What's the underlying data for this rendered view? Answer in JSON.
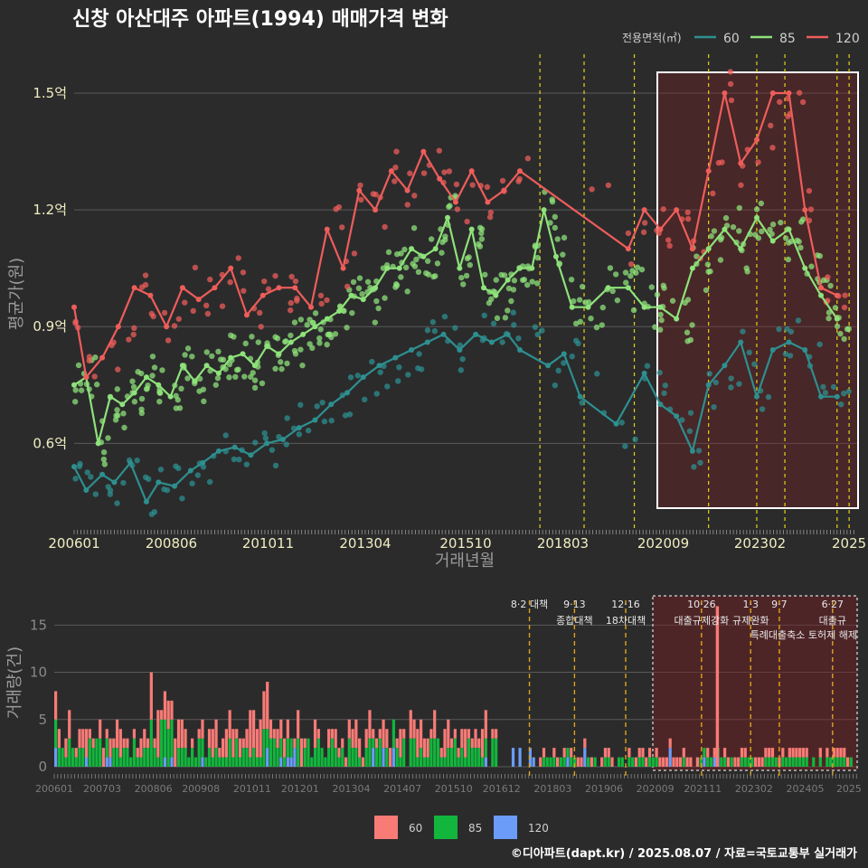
{
  "title": "신창 아산대주 아파트(1994) 매매가격 변화",
  "credit": "©디아파트(dapt.kr) / 2025.08.07 / 자료=국토교통부 실거래가",
  "colors": {
    "s60": "#f36a64",
    "s85": "#8ee27a",
    "s60line": "#2e8f8f",
    "s120": "#ee5d5a",
    "bar60": "#f87b76",
    "bar85": "#12b63c",
    "bar120": "#6b9cf7"
  },
  "chart_data": [
    {
      "type": "line",
      "ylabel": "평균가(원)",
      "xlabel": "거래년월",
      "y_ticks": [
        "0.6억",
        "0.9억",
        "1.2억",
        "1.5억"
      ],
      "y_tick_values": [
        0.6,
        0.9,
        1.2,
        1.5
      ],
      "ylim": [
        0.38,
        1.6
      ],
      "x_ticks": [
        "200601",
        "200806",
        "201011",
        "201304",
        "201510",
        "201803",
        "202009",
        "202302",
        "2025"
      ],
      "legend": {
        "title": "전용면적(㎡)",
        "placement": "top-right",
        "entries": [
          "60",
          "85",
          "120"
        ]
      },
      "series": [
        {
          "name": "60",
          "values": [
            [
              2006.0,
              0.54
            ],
            [
              2006.3,
              0.48
            ],
            [
              2006.7,
              0.52
            ],
            [
              2007.0,
              0.5
            ],
            [
              2007.4,
              0.55
            ],
            [
              2007.8,
              0.45
            ],
            [
              2008.1,
              0.5
            ],
            [
              2008.5,
              0.49
            ],
            [
              2008.9,
              0.53
            ],
            [
              2009.2,
              0.55
            ],
            [
              2009.6,
              0.58
            ],
            [
              2010.0,
              0.59
            ],
            [
              2010.4,
              0.57
            ],
            [
              2010.8,
              0.6
            ],
            [
              2011.2,
              0.61
            ],
            [
              2011.6,
              0.64
            ],
            [
              2012.0,
              0.66
            ],
            [
              2012.4,
              0.7
            ],
            [
              2012.8,
              0.73
            ],
            [
              2013.2,
              0.77
            ],
            [
              2013.6,
              0.8
            ],
            [
              2014.0,
              0.82
            ],
            [
              2014.4,
              0.84
            ],
            [
              2014.8,
              0.86
            ],
            [
              2015.2,
              0.88
            ],
            [
              2015.6,
              0.84
            ],
            [
              2016.0,
              0.88
            ],
            [
              2016.4,
              0.86
            ],
            [
              2016.8,
              0.88
            ],
            [
              2017.1,
              0.84
            ],
            [
              2017.8,
              0.8
            ],
            [
              2018.2,
              0.83
            ],
            [
              2018.6,
              0.72
            ],
            [
              2019.5,
              0.65
            ],
            [
              2020.2,
              0.78
            ],
            [
              2020.6,
              0.7
            ],
            [
              2021.0,
              0.67
            ],
            [
              2021.4,
              0.58
            ],
            [
              2021.8,
              0.75
            ],
            [
              2022.2,
              0.8
            ],
            [
              2022.6,
              0.86
            ],
            [
              2023.0,
              0.72
            ],
            [
              2023.4,
              0.84
            ],
            [
              2023.8,
              0.86
            ],
            [
              2024.2,
              0.84
            ],
            [
              2024.6,
              0.72
            ],
            [
              2025.0,
              0.72
            ]
          ]
        },
        {
          "name": "85",
          "values": [
            [
              2006.0,
              0.75
            ],
            [
              2006.3,
              0.77
            ],
            [
              2006.6,
              0.6
            ],
            [
              2006.9,
              0.72
            ],
            [
              2007.2,
              0.7
            ],
            [
              2007.5,
              0.73
            ],
            [
              2007.8,
              0.77
            ],
            [
              2008.1,
              0.75
            ],
            [
              2008.4,
              0.72
            ],
            [
              2008.7,
              0.8
            ],
            [
              2009.0,
              0.76
            ],
            [
              2009.3,
              0.8
            ],
            [
              2009.6,
              0.78
            ],
            [
              2009.9,
              0.82
            ],
            [
              2010.2,
              0.83
            ],
            [
              2010.5,
              0.8
            ],
            [
              2010.8,
              0.85
            ],
            [
              2011.1,
              0.83
            ],
            [
              2011.4,
              0.86
            ],
            [
              2011.7,
              0.88
            ],
            [
              2012.0,
              0.9
            ],
            [
              2012.3,
              0.92
            ],
            [
              2012.6,
              0.94
            ],
            [
              2012.9,
              0.98
            ],
            [
              2013.2,
              0.97
            ],
            [
              2013.5,
              1.0
            ],
            [
              2013.8,
              1.05
            ],
            [
              2014.1,
              1.05
            ],
            [
              2014.4,
              1.1
            ],
            [
              2014.7,
              1.08
            ],
            [
              2015.0,
              1.1
            ],
            [
              2015.3,
              1.18
            ],
            [
              2015.6,
              1.05
            ],
            [
              2015.9,
              1.15
            ],
            [
              2016.2,
              1.0
            ],
            [
              2016.5,
              0.98
            ],
            [
              2016.8,
              1.02
            ],
            [
              2017.1,
              1.05
            ],
            [
              2017.4,
              1.05
            ],
            [
              2017.7,
              1.2
            ],
            [
              2018.0,
              1.08
            ],
            [
              2018.4,
              0.95
            ],
            [
              2018.8,
              0.95
            ],
            [
              2019.3,
              1.0
            ],
            [
              2019.8,
              1.0
            ],
            [
              2020.2,
              0.95
            ],
            [
              2020.6,
              0.95
            ],
            [
              2021.0,
              0.92
            ],
            [
              2021.4,
              1.05
            ],
            [
              2021.8,
              1.1
            ],
            [
              2022.2,
              1.15
            ],
            [
              2022.6,
              1.1
            ],
            [
              2023.0,
              1.18
            ],
            [
              2023.4,
              1.12
            ],
            [
              2023.8,
              1.15
            ],
            [
              2024.2,
              1.05
            ],
            [
              2024.6,
              0.98
            ],
            [
              2025.0,
              0.92
            ]
          ]
        },
        {
          "name": "120",
          "values": [
            [
              2006.0,
              0.95
            ],
            [
              2006.3,
              0.77
            ],
            [
              2006.7,
              0.82
            ],
            [
              2007.1,
              0.9
            ],
            [
              2007.5,
              1.0
            ],
            [
              2007.9,
              0.98
            ],
            [
              2008.3,
              0.9
            ],
            [
              2008.7,
              1.0
            ],
            [
              2009.1,
              0.97
            ],
            [
              2009.5,
              1.0
            ],
            [
              2009.9,
              1.05
            ],
            [
              2010.3,
              0.93
            ],
            [
              2010.7,
              0.98
            ],
            [
              2011.1,
              1.0
            ],
            [
              2011.5,
              1.0
            ],
            [
              2011.9,
              0.95
            ],
            [
              2012.3,
              1.15
            ],
            [
              2012.7,
              1.05
            ],
            [
              2013.1,
              1.25
            ],
            [
              2013.5,
              1.2
            ],
            [
              2013.9,
              1.3
            ],
            [
              2014.3,
              1.25
            ],
            [
              2014.7,
              1.35
            ],
            [
              2015.1,
              1.28
            ],
            [
              2015.5,
              1.22
            ],
            [
              2015.9,
              1.3
            ],
            [
              2016.3,
              1.22
            ],
            [
              2016.7,
              1.25
            ],
            [
              2017.1,
              1.3
            ],
            [
              2019.8,
              1.1
            ],
            [
              2020.2,
              1.2
            ],
            [
              2020.6,
              1.15
            ],
            [
              2021.0,
              1.2
            ],
            [
              2021.4,
              1.1
            ],
            [
              2021.8,
              1.3
            ],
            [
              2022.2,
              1.5
            ],
            [
              2022.6,
              1.32
            ],
            [
              2023.0,
              1.38
            ],
            [
              2023.4,
              1.5
            ],
            [
              2023.8,
              1.5
            ],
            [
              2024.2,
              1.2
            ],
            [
              2024.6,
              1.0
            ],
            [
              2025.0,
              0.98
            ]
          ]
        }
      ]
    },
    {
      "type": "bar",
      "ylabel": "거래량(건)",
      "y_ticks": [
        "0",
        "5",
        "10",
        "15"
      ],
      "y_tick_values": [
        0,
        5,
        10,
        15
      ],
      "x_ticks": [
        "200601",
        "200703",
        "200806",
        "200908",
        "201011",
        "201201",
        "201304",
        "201407",
        "201510",
        "201612",
        "201803",
        "201906",
        "202009",
        "202111",
        "202302",
        "202405",
        "2025"
      ],
      "legend": {
        "placement": "bottom",
        "entries": [
          "60",
          "85",
          "120"
        ]
      },
      "events": [
        {
          "date": "8·2 대책",
          "at": 2017.6
        },
        {
          "date": "9·13",
          "label": "종합대책",
          "at": 2018.7
        },
        {
          "date": "12·16",
          "label": "18차대책",
          "at": 2019.95
        },
        {
          "date": "10·26",
          "label": "대출규제강화",
          "at": 2021.8
        },
        {
          "date": "1·3",
          "label": "규제완화",
          "at": 2023.0
        },
        {
          "date": "9·7",
          "label": "",
          "at": 2023.7
        },
        {
          "date": "6·27",
          "label": "대출규",
          "at": 2025.0
        }
      ],
      "event_note": "특례대출축소 토허제 해제",
      "series": [
        {
          "name": "60",
          "monthly_seed": "estimated"
        },
        {
          "name": "85",
          "monthly_seed": "estimated"
        },
        {
          "name": "120",
          "monthly_seed": "estimated"
        }
      ]
    }
  ]
}
